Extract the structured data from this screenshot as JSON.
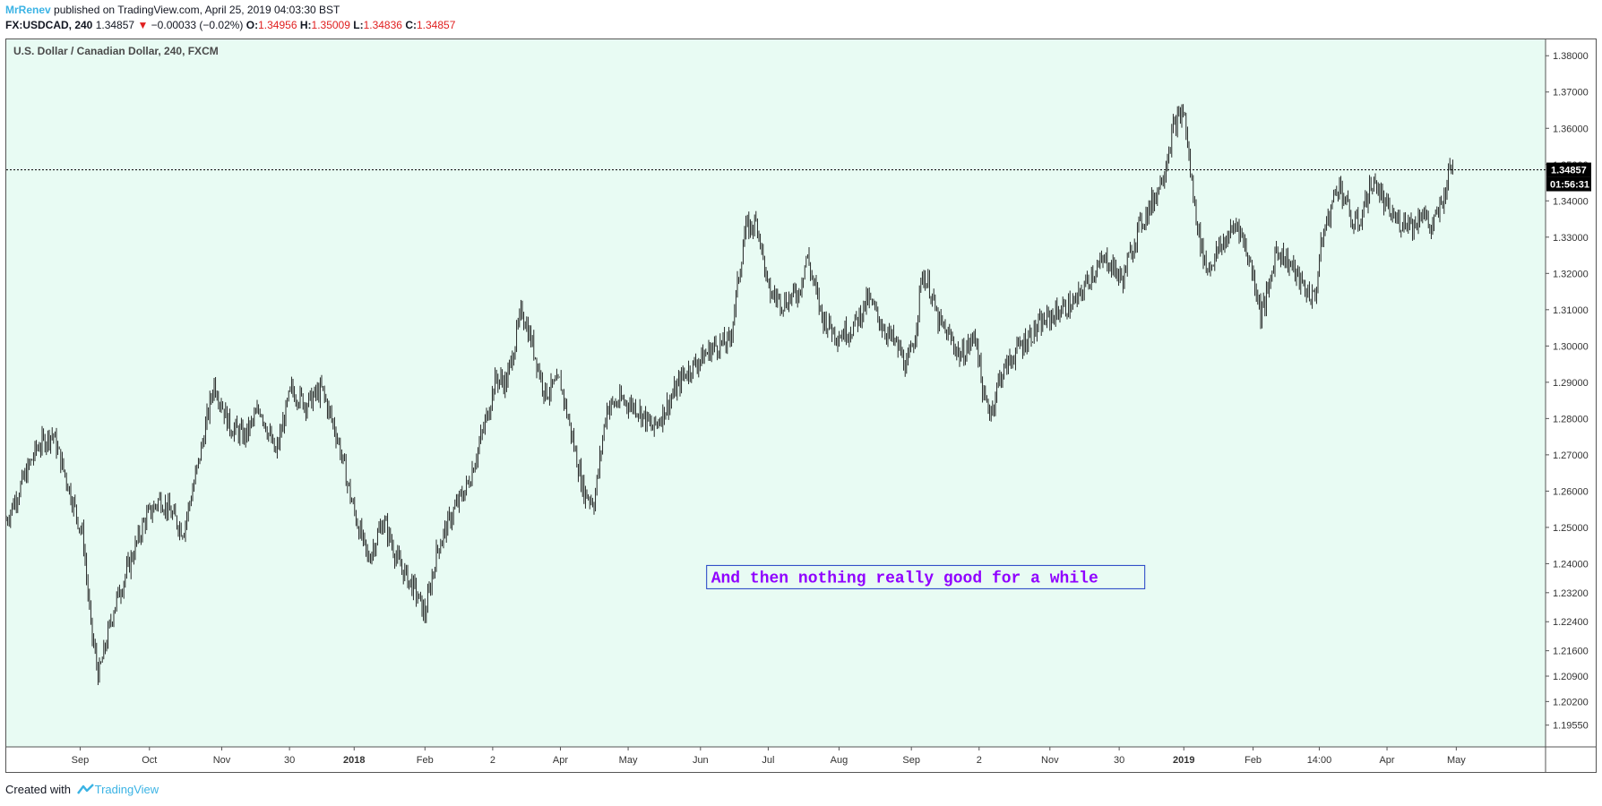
{
  "header": {
    "author": "MrRenev",
    "published_text": " published on TradingView.com, April 25, 2019 04:03:30 BST",
    "symbol": "FX:USDCAD, 240",
    "last": "1.34857",
    "change_arrow": "▼",
    "change": "−0.00033 (−0.02%)",
    "open_label": "O:",
    "open": "1.34956",
    "high_label": "H:",
    "high": "1.35009",
    "low_label": "L:",
    "low": "1.34836",
    "close_label": "C:",
    "close": "1.34857"
  },
  "footer": {
    "created_with": "Created with",
    "brand": "TradingView"
  },
  "chart_data": {
    "type": "candlestick",
    "title": "U.S. Dollar / Canadian Dollar, 240, FXCM",
    "background": "#e8fbf3",
    "bar_color": "#111111",
    "ylim": [
      1.1895,
      1.3845
    ],
    "yticks": [
      "1.38000",
      "1.37000",
      "1.36000",
      "1.35000",
      "1.34000",
      "1.33000",
      "1.32000",
      "1.31000",
      "1.30000",
      "1.29000",
      "1.28000",
      "1.27000",
      "1.26000",
      "1.25000",
      "1.24000",
      "1.23200",
      "1.22400",
      "1.21600",
      "1.20900",
      "1.20200",
      "1.19550"
    ],
    "xticks": [
      {
        "label": "Sep",
        "pos": 0.048,
        "bold": false
      },
      {
        "label": "Oct",
        "pos": 0.093,
        "bold": false
      },
      {
        "label": "Nov",
        "pos": 0.14,
        "bold": false
      },
      {
        "label": "30",
        "pos": 0.184,
        "bold": false
      },
      {
        "label": "2018",
        "pos": 0.226,
        "bold": true
      },
      {
        "label": "Feb",
        "pos": 0.272,
        "bold": false
      },
      {
        "label": "2",
        "pos": 0.316,
        "bold": false
      },
      {
        "label": "Apr",
        "pos": 0.36,
        "bold": false
      },
      {
        "label": "May",
        "pos": 0.404,
        "bold": false
      },
      {
        "label": "Jun",
        "pos": 0.451,
        "bold": false
      },
      {
        "label": "Jul",
        "pos": 0.495,
        "bold": false
      },
      {
        "label": "Aug",
        "pos": 0.541,
        "bold": false
      },
      {
        "label": "Sep",
        "pos": 0.588,
        "bold": false
      },
      {
        "label": "2",
        "pos": 0.632,
        "bold": false
      },
      {
        "label": "Nov",
        "pos": 0.678,
        "bold": false
      },
      {
        "label": "30",
        "pos": 0.723,
        "bold": false
      },
      {
        "label": "2019",
        "pos": 0.765,
        "bold": true
      },
      {
        "label": "Feb",
        "pos": 0.81,
        "bold": false
      },
      {
        "label": "14:00",
        "pos": 0.853,
        "bold": false
      },
      {
        "label": "Apr",
        "pos": 0.897,
        "bold": false
      },
      {
        "label": "May",
        "pos": 0.942,
        "bold": false
      }
    ],
    "price_path": [
      [
        0.0,
        1.252
      ],
      [
        0.02,
        1.272
      ],
      [
        0.03,
        1.276
      ],
      [
        0.04,
        1.262
      ],
      [
        0.05,
        1.247
      ],
      [
        0.055,
        1.222
      ],
      [
        0.06,
        1.209
      ],
      [
        0.07,
        1.228
      ],
      [
        0.08,
        1.24
      ],
      [
        0.09,
        1.252
      ],
      [
        0.1,
        1.258
      ],
      [
        0.115,
        1.249
      ],
      [
        0.125,
        1.268
      ],
      [
        0.135,
        1.29
      ],
      [
        0.145,
        1.278
      ],
      [
        0.155,
        1.275
      ],
      [
        0.165,
        1.283
      ],
      [
        0.175,
        1.27
      ],
      [
        0.185,
        1.288
      ],
      [
        0.195,
        1.284
      ],
      [
        0.205,
        1.288
      ],
      [
        0.215,
        1.275
      ],
      [
        0.225,
        1.256
      ],
      [
        0.235,
        1.241
      ],
      [
        0.245,
        1.252
      ],
      [
        0.255,
        1.24
      ],
      [
        0.265,
        1.233
      ],
      [
        0.272,
        1.226
      ],
      [
        0.28,
        1.244
      ],
      [
        0.29,
        1.254
      ],
      [
        0.3,
        1.262
      ],
      [
        0.31,
        1.277
      ],
      [
        0.318,
        1.291
      ],
      [
        0.325,
        1.29
      ],
      [
        0.335,
        1.31
      ],
      [
        0.342,
        1.3
      ],
      [
        0.35,
        1.287
      ],
      [
        0.36,
        1.29
      ],
      [
        0.368,
        1.274
      ],
      [
        0.375,
        1.26
      ],
      [
        0.382,
        1.257
      ],
      [
        0.39,
        1.283
      ],
      [
        0.4,
        1.285
      ],
      [
        0.41,
        1.283
      ],
      [
        0.42,
        1.277
      ],
      [
        0.43,
        1.284
      ],
      [
        0.44,
        1.292
      ],
      [
        0.45,
        1.296
      ],
      [
        0.46,
        1.3
      ],
      [
        0.47,
        1.301
      ],
      [
        0.48,
        1.332
      ],
      [
        0.488,
        1.334
      ],
      [
        0.495,
        1.315
      ],
      [
        0.505,
        1.312
      ],
      [
        0.515,
        1.315
      ],
      [
        0.52,
        1.325
      ],
      [
        0.53,
        1.308
      ],
      [
        0.54,
        1.303
      ],
      [
        0.55,
        1.305
      ],
      [
        0.56,
        1.313
      ],
      [
        0.57,
        1.305
      ],
      [
        0.58,
        1.299
      ],
      [
        0.585,
        1.294
      ],
      [
        0.59,
        1.302
      ],
      [
        0.595,
        1.32
      ],
      [
        0.6,
        1.316
      ],
      [
        0.605,
        1.307
      ],
      [
        0.615,
        1.301
      ],
      [
        0.62,
        1.297
      ],
      [
        0.63,
        1.303
      ],
      [
        0.635,
        1.285
      ],
      [
        0.64,
        1.282
      ],
      [
        0.645,
        1.291
      ],
      [
        0.655,
        1.298
      ],
      [
        0.665,
        1.303
      ],
      [
        0.675,
        1.307
      ],
      [
        0.685,
        1.31
      ],
      [
        0.695,
        1.312
      ],
      [
        0.705,
        1.32
      ],
      [
        0.715,
        1.324
      ],
      [
        0.725,
        1.318
      ],
      [
        0.735,
        1.332
      ],
      [
        0.745,
        1.34
      ],
      [
        0.752,
        1.348
      ],
      [
        0.758,
        1.36
      ],
      [
        0.765,
        1.365
      ],
      [
        0.77,
        1.345
      ],
      [
        0.775,
        1.33
      ],
      [
        0.78,
        1.321
      ],
      [
        0.79,
        1.328
      ],
      [
        0.8,
        1.334
      ],
      [
        0.81,
        1.32
      ],
      [
        0.815,
        1.309
      ],
      [
        0.82,
        1.315
      ],
      [
        0.825,
        1.327
      ],
      [
        0.835,
        1.322
      ],
      [
        0.84,
        1.318
      ],
      [
        0.845,
        1.315
      ],
      [
        0.85,
        1.313
      ],
      [
        0.855,
        1.33
      ],
      [
        0.86,
        1.337
      ],
      [
        0.865,
        1.345
      ],
      [
        0.87,
        1.34
      ],
      [
        0.875,
        1.333
      ],
      [
        0.88,
        1.335
      ],
      [
        0.885,
        1.343
      ],
      [
        0.89,
        1.345
      ],
      [
        0.895,
        1.339
      ],
      [
        0.9,
        1.336
      ],
      [
        0.905,
        1.334
      ],
      [
        0.91,
        1.335
      ],
      [
        0.915,
        1.333
      ],
      [
        0.92,
        1.338
      ],
      [
        0.925,
        1.332
      ],
      [
        0.93,
        1.336
      ],
      [
        0.935,
        1.343
      ],
      [
        0.938,
        1.35
      ],
      [
        0.94,
        1.34857
      ]
    ],
    "last_price_label": "1.34857",
    "last_price_value": 1.34857,
    "countdown": "01:56:31",
    "annotation": {
      "text": "And then nothing really good for a while",
      "color": "#9000ff",
      "border_color": "#1e3ec4",
      "x": 0.455,
      "y": 1.2363
    }
  }
}
